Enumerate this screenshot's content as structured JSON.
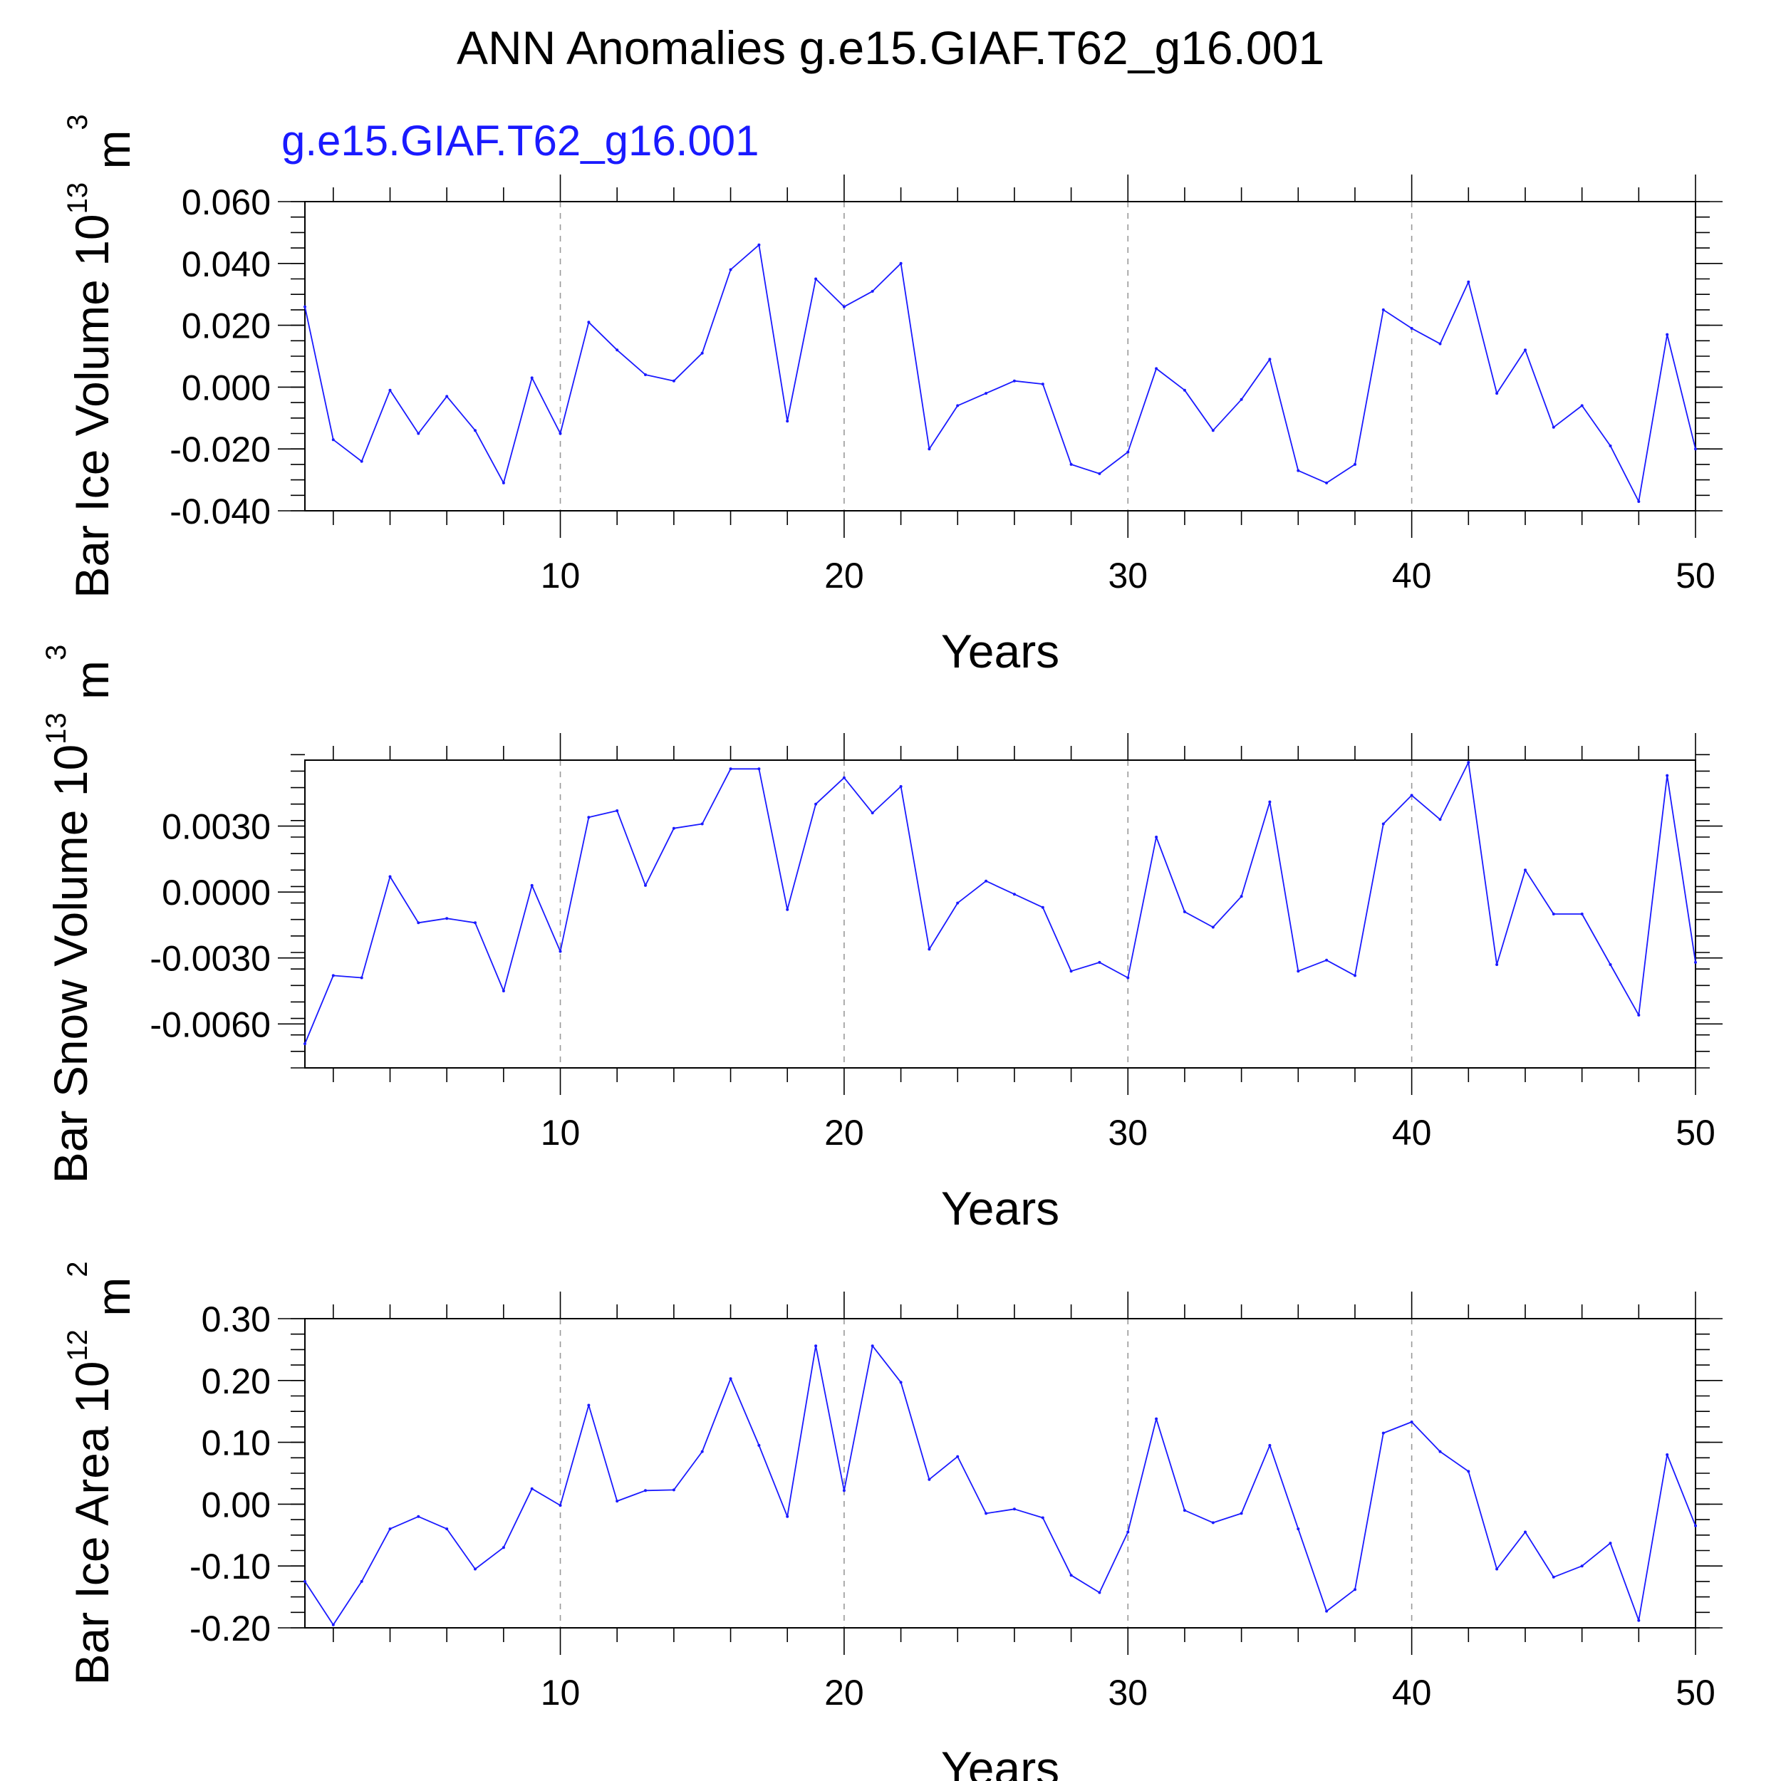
{
  "figure": {
    "title": "ANN Anomalies g.e15.GIAF.T62_g16.001",
    "subtitle": "g.e15.GIAF.T62_g16.001",
    "series_color": "#1a1aff",
    "axis_color": "#000000",
    "grid_color": "#999999"
  },
  "chart_data": [
    {
      "type": "line",
      "ylabel": "Bar Ice Volume 10",
      "ylabel_exp": "13",
      "ylabel_unit": " m",
      "ylabel_unit_exp": "3",
      "xlabel": "Years",
      "xlim": [
        1,
        50
      ],
      "ylim": [
        -0.04,
        0.06
      ],
      "xticks": [
        10,
        20,
        30,
        40,
        50
      ],
      "xtick_labels": [
        "10",
        "20",
        "30",
        "40",
        "50"
      ],
      "yticks": [
        -0.04,
        -0.02,
        0.0,
        0.02,
        0.04,
        0.06
      ],
      "ytick_labels": [
        "-0.040",
        "-0.020",
        "0.000",
        "0.020",
        "0.040",
        "0.060"
      ],
      "minor_y_step": 0.005,
      "x_gridlines": [
        10,
        20,
        30,
        40
      ],
      "series": [
        {
          "name": "g.e15.GIAF.T62_g16.001",
          "x": [
            1,
            2,
            3,
            4,
            5,
            6,
            7,
            8,
            9,
            10,
            11,
            12,
            13,
            14,
            15,
            16,
            17,
            18,
            19,
            20,
            21,
            22,
            23,
            24,
            25,
            26,
            27,
            28,
            29,
            30,
            31,
            32,
            33,
            34,
            35,
            36,
            37,
            38,
            39,
            40,
            41,
            42,
            43,
            44,
            45,
            46,
            47,
            48,
            49,
            50
          ],
          "values": [
            0.026,
            -0.017,
            -0.024,
            -0.001,
            -0.015,
            -0.003,
            -0.014,
            -0.031,
            0.003,
            -0.015,
            0.021,
            0.012,
            0.004,
            0.002,
            0.011,
            0.038,
            0.046,
            -0.011,
            0.035,
            0.026,
            0.031,
            0.04,
            -0.02,
            -0.006,
            -0.002,
            0.002,
            0.001,
            -0.025,
            -0.028,
            -0.021,
            0.006,
            -0.001,
            -0.014,
            -0.004,
            0.009,
            -0.027,
            -0.031,
            -0.025,
            0.025,
            0.019,
            0.014,
            0.034,
            -0.002,
            0.012,
            -0.013,
            -0.006,
            -0.019,
            -0.037,
            0.017,
            -0.02
          ]
        }
      ]
    },
    {
      "type": "line",
      "ylabel": "Bar Snow Volume 10",
      "ylabel_exp": "13",
      "ylabel_unit": " m",
      "ylabel_unit_exp": "3",
      "xlabel": "Years",
      "xlim": [
        1,
        50
      ],
      "ylim": [
        -0.008,
        0.006
      ],
      "xticks": [
        10,
        20,
        30,
        40,
        50
      ],
      "xtick_labels": [
        "10",
        "20",
        "30",
        "40",
        "50"
      ],
      "yticks": [
        -0.006,
        -0.003,
        0.0,
        0.003
      ],
      "ytick_labels": [
        "-0.0060",
        "-0.0030",
        "0.0000",
        "0.0030"
      ],
      "minor_y_step": 0.00075,
      "x_gridlines": [
        10,
        20,
        30,
        40
      ],
      "series": [
        {
          "name": "g.e15.GIAF.T62_g16.001",
          "x": [
            1,
            2,
            3,
            4,
            5,
            6,
            7,
            8,
            9,
            10,
            11,
            12,
            13,
            14,
            15,
            16,
            17,
            18,
            19,
            20,
            21,
            22,
            23,
            24,
            25,
            26,
            27,
            28,
            29,
            30,
            31,
            32,
            33,
            34,
            35,
            36,
            37,
            38,
            39,
            40,
            41,
            42,
            43,
            44,
            45,
            46,
            47,
            48,
            49,
            50
          ],
          "values": [
            -0.0069,
            -0.0038,
            -0.0039,
            0.0007,
            -0.0014,
            -0.0012,
            -0.0014,
            -0.0045,
            0.0003,
            -0.0027,
            0.0034,
            0.0037,
            0.0003,
            0.0029,
            0.0031,
            0.0056,
            0.0056,
            -0.0008,
            0.004,
            0.0052,
            0.0036,
            0.0048,
            -0.0026,
            -0.0005,
            0.0005,
            -0.0001,
            -0.0007,
            -0.0036,
            -0.0032,
            -0.0039,
            0.0025,
            -0.0009,
            -0.0016,
            -0.0002,
            0.0041,
            -0.0036,
            -0.0031,
            -0.0038,
            0.0031,
            0.0044,
            0.0033,
            0.0059,
            -0.0033,
            0.001,
            -0.001,
            -0.001,
            -0.0033,
            -0.0056,
            0.0053,
            -0.0032
          ]
        }
      ]
    },
    {
      "type": "line",
      "ylabel": "Bar Ice Area 10",
      "ylabel_exp": "12",
      "ylabel_unit": " m",
      "ylabel_unit_exp": "2",
      "xlabel": "Years",
      "xlim": [
        1,
        50
      ],
      "ylim": [
        -0.2,
        0.3
      ],
      "xticks": [
        10,
        20,
        30,
        40,
        50
      ],
      "xtick_labels": [
        "10",
        "20",
        "30",
        "40",
        "50"
      ],
      "yticks": [
        -0.2,
        -0.1,
        0.0,
        0.1,
        0.2,
        0.3
      ],
      "ytick_labels": [
        "-0.20",
        "-0.10",
        "0.00",
        "0.10",
        "0.20",
        "0.30"
      ],
      "minor_y_step": 0.025,
      "x_gridlines": [
        10,
        20,
        30,
        40
      ],
      "series": [
        {
          "name": "g.e15.GIAF.T62_g16.001",
          "x": [
            1,
            2,
            3,
            4,
            5,
            6,
            7,
            8,
            9,
            10,
            11,
            12,
            13,
            14,
            15,
            16,
            17,
            18,
            19,
            20,
            21,
            22,
            23,
            24,
            25,
            26,
            27,
            28,
            29,
            30,
            31,
            32,
            33,
            34,
            35,
            36,
            37,
            38,
            39,
            40,
            41,
            42,
            43,
            44,
            45,
            46,
            47,
            48,
            49,
            50
          ],
          "values": [
            -0.125,
            -0.195,
            -0.125,
            -0.04,
            -0.02,
            -0.04,
            -0.105,
            -0.07,
            0.025,
            -0.002,
            0.16,
            0.005,
            0.022,
            0.023,
            0.085,
            0.203,
            0.095,
            -0.02,
            0.256,
            0.022,
            0.256,
            0.197,
            0.04,
            0.077,
            -0.015,
            -0.008,
            -0.022,
            -0.115,
            -0.143,
            -0.045,
            0.138,
            -0.01,
            -0.03,
            -0.015,
            0.095,
            -0.04,
            -0.173,
            -0.138,
            0.115,
            0.133,
            0.085,
            0.053,
            -0.105,
            -0.045,
            -0.118,
            -0.1,
            -0.063,
            -0.188,
            0.08,
            -0.035
          ]
        }
      ]
    }
  ]
}
